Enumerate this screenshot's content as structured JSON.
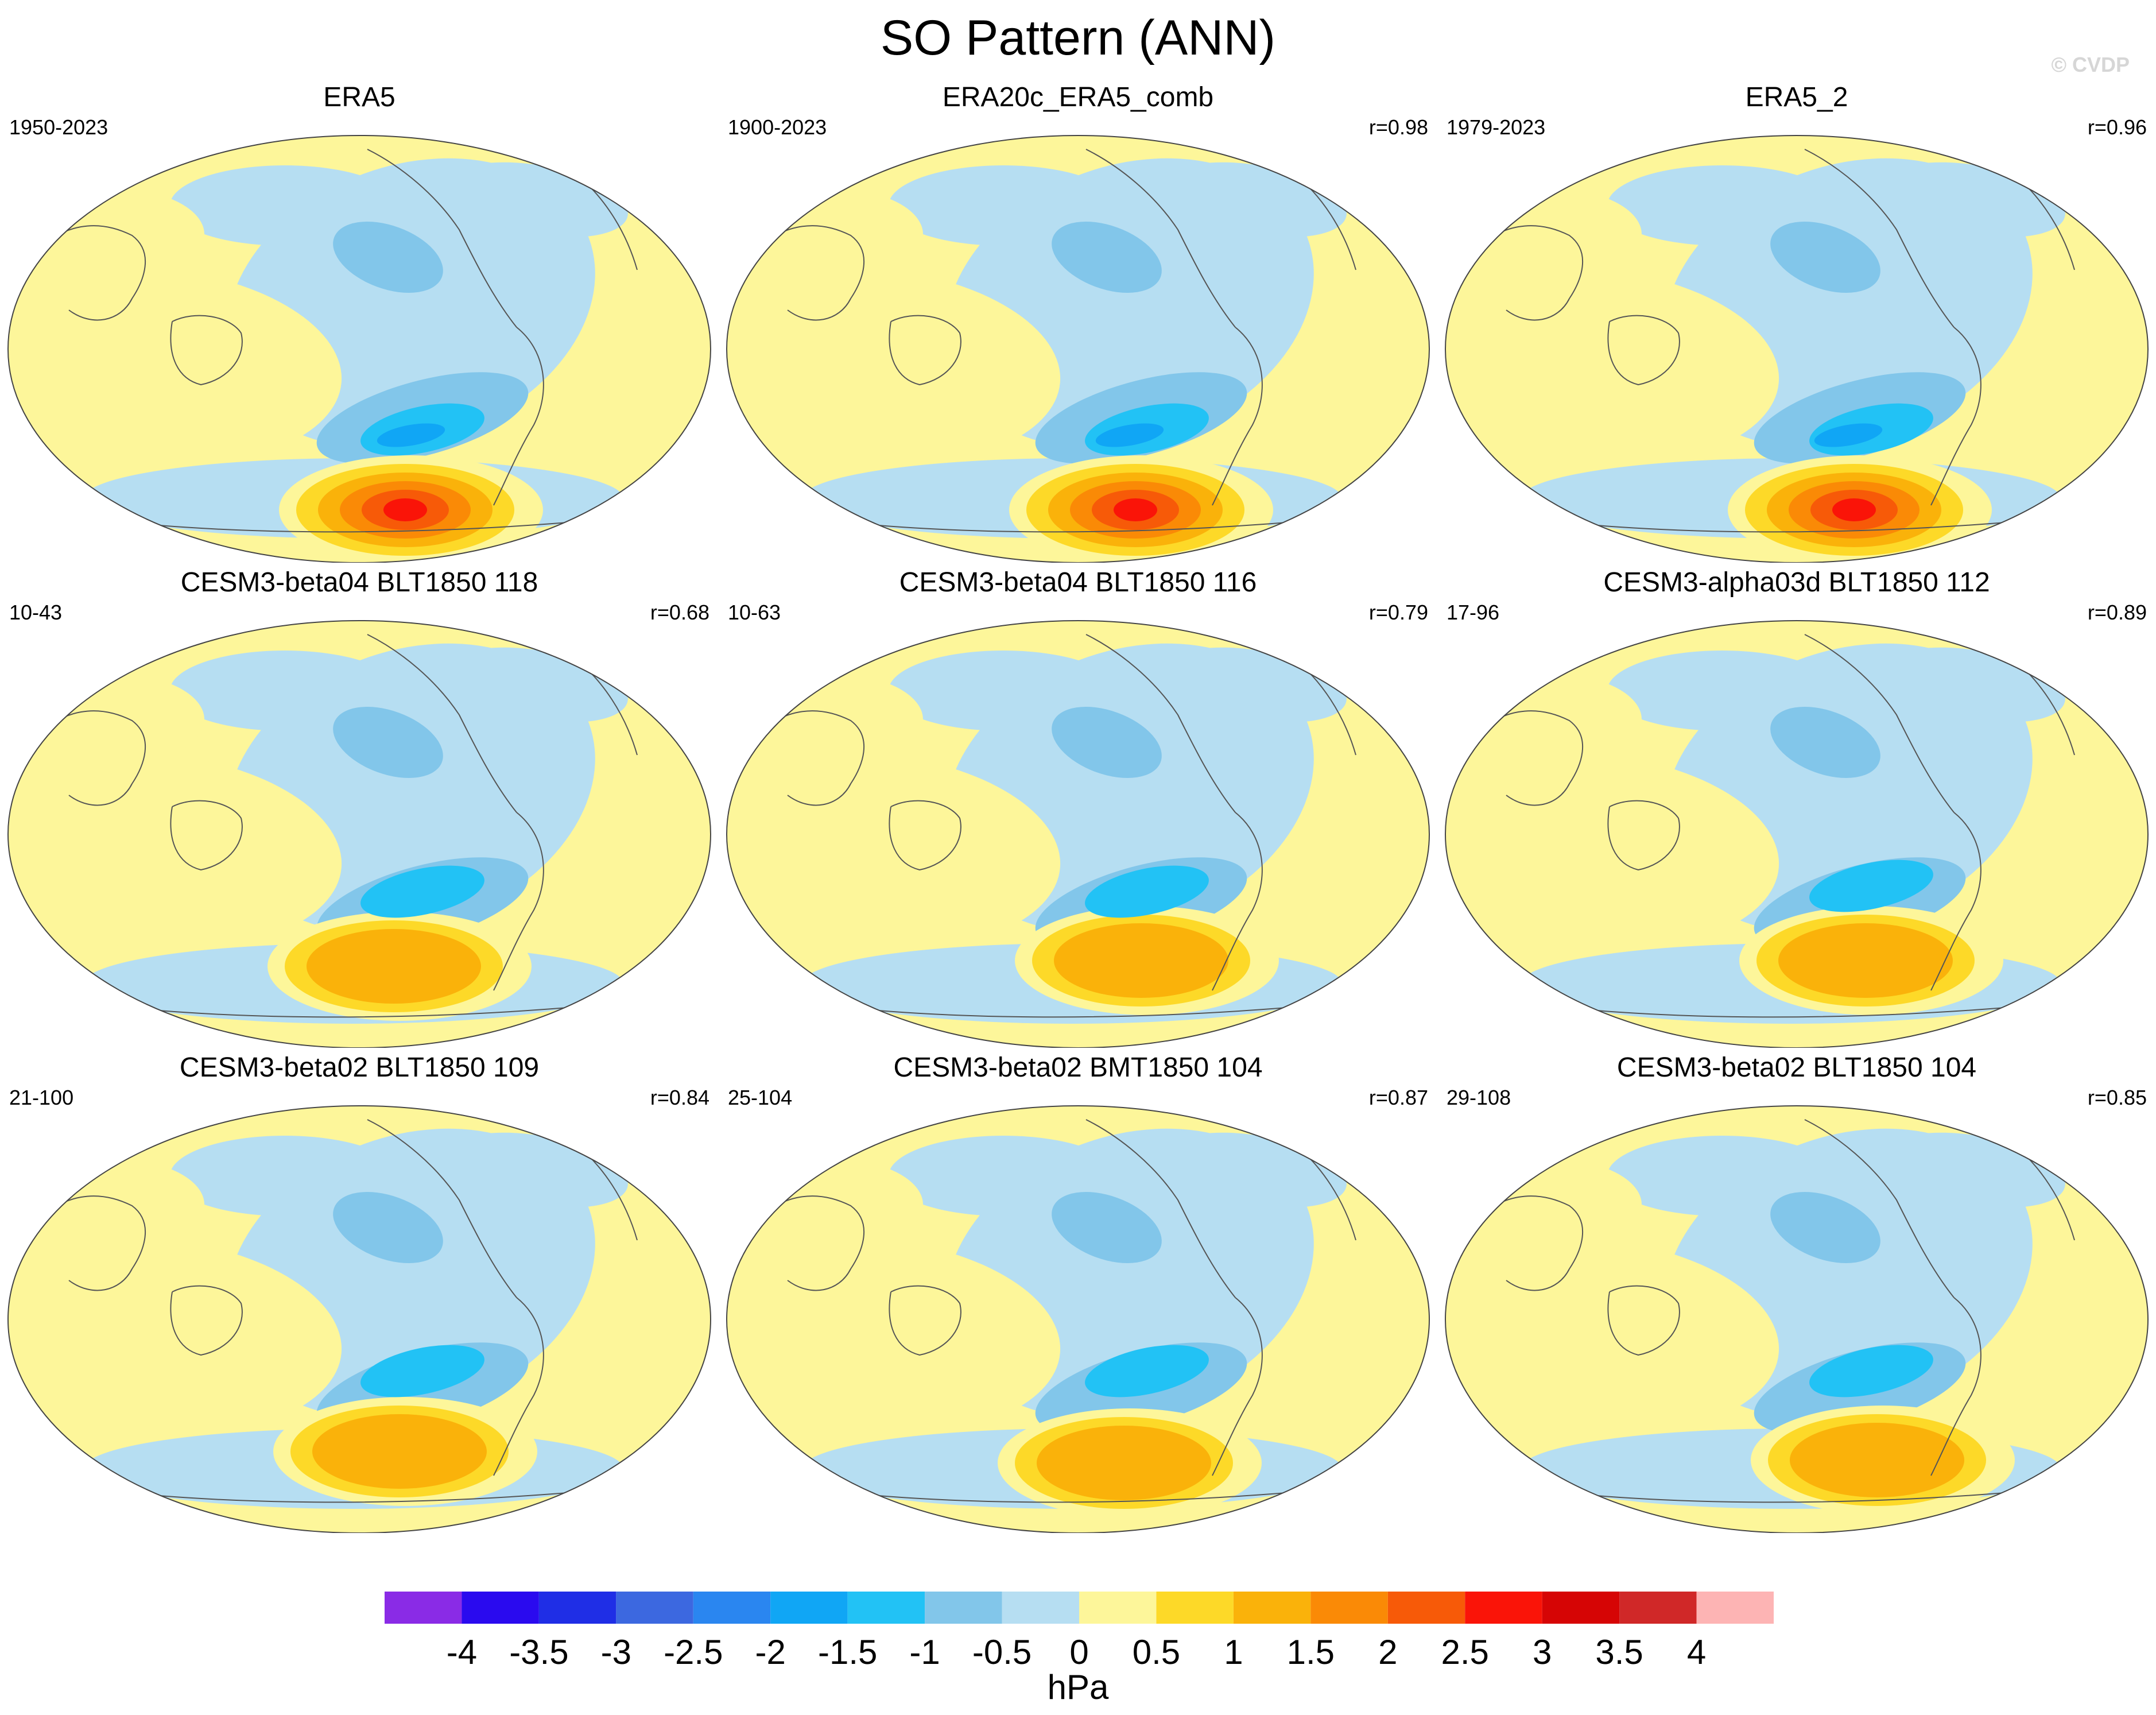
{
  "title": "SO Pattern (ANN)",
  "watermark": "© CVDP",
  "chart_data": {
    "type": "heatmap",
    "title": "SO Pattern (ANN)",
    "projection": "global map panels (Pacific-centered)",
    "panels": [
      {
        "title": "ERA5",
        "period": "1950-2023",
        "corr": ""
      },
      {
        "title": "ERA20c_ERA5_comb",
        "period": "1900-2023",
        "corr": "r=0.98"
      },
      {
        "title": "ERA5_2",
        "period": "1979-2023",
        "corr": "r=0.96"
      },
      {
        "title": "CESM3-beta04 BLT1850 118",
        "period": "10-43",
        "corr": "r=0.68"
      },
      {
        "title": "CESM3-beta04 BLT1850 116",
        "period": "10-63",
        "corr": "r=0.79"
      },
      {
        "title": "CESM3-alpha03d BLT1850 112",
        "period": "17-96",
        "corr": "r=0.89"
      },
      {
        "title": "CESM3-beta02 BLT1850 109",
        "period": "21-100",
        "corr": "r=0.84"
      },
      {
        "title": "CESM3-beta02 BMT1850 104",
        "period": "25-104",
        "corr": "r=0.87"
      },
      {
        "title": "CESM3-beta02 BLT1850 104",
        "period": "29-108",
        "corr": "r=0.85"
      }
    ],
    "colorbar": {
      "unit": "hPa",
      "levels": [
        -4,
        -3.5,
        -3,
        -2.5,
        -2,
        -1.5,
        -1,
        -0.5,
        0,
        0.5,
        1,
        1.5,
        2,
        2.5,
        3,
        3.5,
        4
      ],
      "tick_labels": [
        "-4",
        "-3.5",
        "-3",
        "-2.5",
        "-2",
        "-1.5",
        "-1",
        "-0.5",
        "0",
        "0.5",
        "1",
        "1.5",
        "2",
        "2.5",
        "3",
        "3.5",
        "4"
      ],
      "colors": [
        "#8a2be6",
        "#2a0aef",
        "#1f2ee6",
        "#3c68e0",
        "#2a86f0",
        "#10a6f5",
        "#22c2f5",
        "#82c6ea",
        "#b6def2",
        "#fdf69a",
        "#fdd928",
        "#fab20a",
        "#fa8a06",
        "#f75a08",
        "#fa1408",
        "#d60505",
        "#d02828",
        "#fdb4b4"
      ]
    }
  }
}
